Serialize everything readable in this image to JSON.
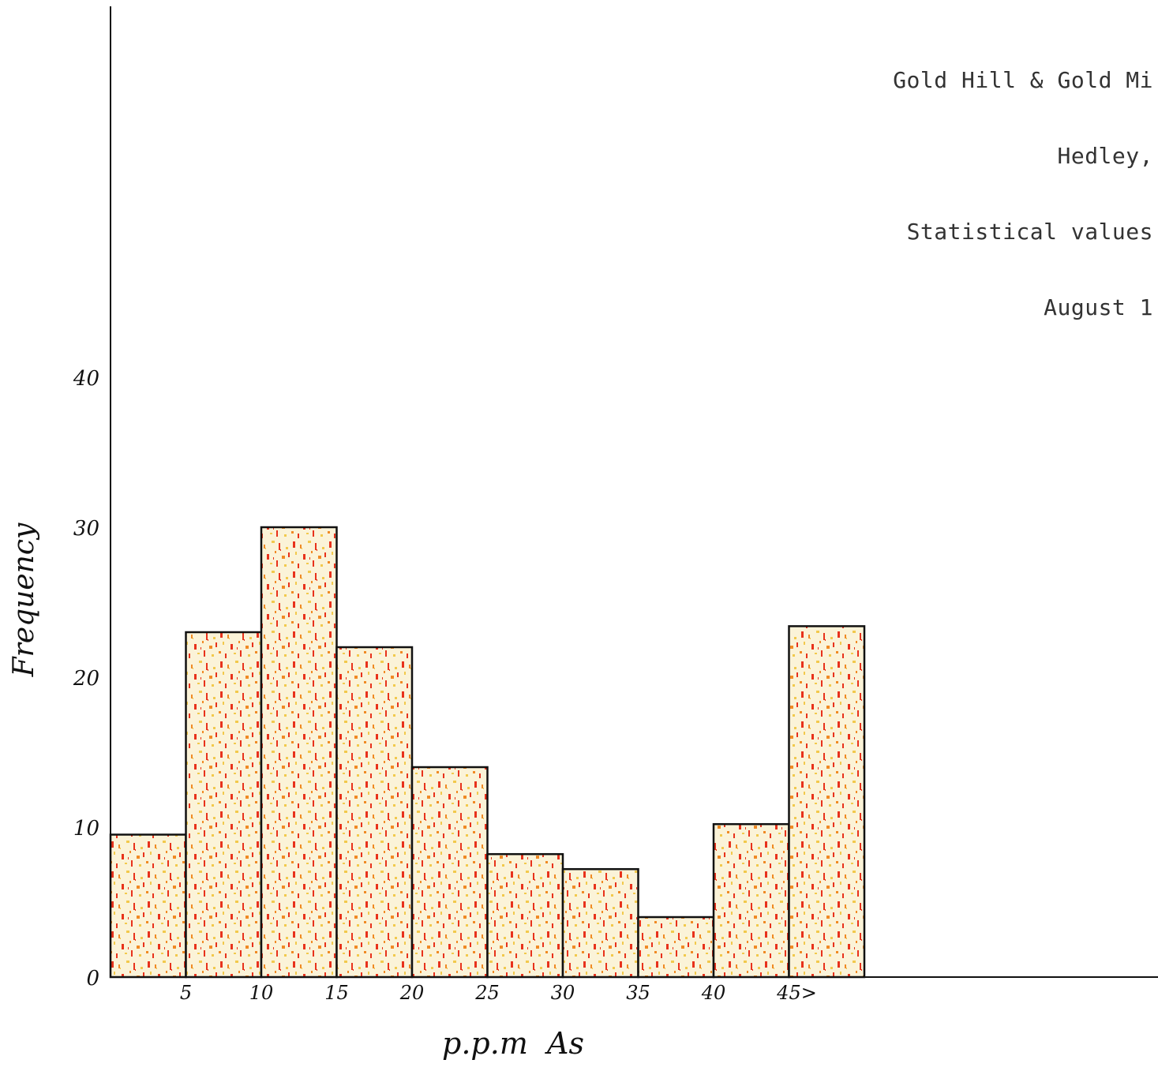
{
  "header": {
    "line1": "Gold Hill & Gold Mi",
    "line2": "Hedley,",
    "line3": "Statistical values",
    "line4": "August 1"
  },
  "colors": {
    "ink": "#111111",
    "fill_base": "#fbf3d8",
    "speckle_red": "#e8321c",
    "speckle_orange": "#f08a24",
    "speckle_yellow": "#f2c94c"
  },
  "chart_data": {
    "type": "bar",
    "categories": [
      "0-5",
      "5-10",
      "10-15",
      "15-20",
      "20-25",
      "25-30",
      "30-35",
      "35-40",
      "40-45",
      "45>"
    ],
    "values": [
      9.5,
      23,
      30,
      22,
      14,
      8.2,
      7.2,
      4,
      10.2,
      23.4
    ],
    "xlabel": "p.p.m  As",
    "ylabel": "Frequency",
    "ylim": [
      0,
      40
    ],
    "y_ticks": [
      "0",
      "10",
      "20",
      "30",
      "40"
    ],
    "y_tick_values": [
      0,
      10,
      20,
      30,
      40
    ],
    "x_ticks": [
      "5",
      "10",
      "15",
      "20",
      "25",
      "30",
      "35",
      "40",
      "45>"
    ],
    "x_tick_values": [
      5,
      10,
      15,
      20,
      25,
      30,
      35,
      40,
      45
    ],
    "grid": false,
    "legend": "none"
  }
}
